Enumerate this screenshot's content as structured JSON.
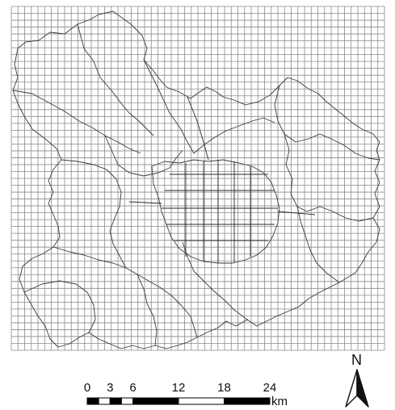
{
  "map": {
    "grid": {
      "cols": 56,
      "rows": 50,
      "line_color": "#8a8a8a"
    },
    "boundary_color": "#3a3a3a"
  },
  "scale_bar": {
    "ticks": [
      "0",
      "3",
      "6",
      "12",
      "18",
      "24"
    ],
    "tick_values_km": [
      0,
      3,
      6,
      12,
      18,
      24
    ],
    "unit": "km"
  },
  "north_arrow": {
    "label": "N",
    "icon": "north-arrow-icon"
  }
}
